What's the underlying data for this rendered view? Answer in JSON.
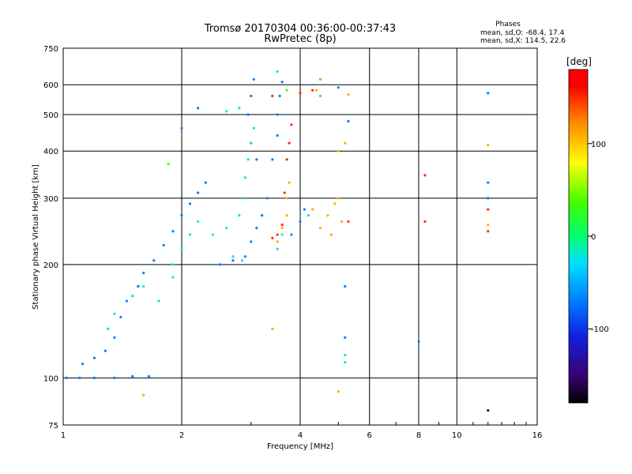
{
  "chart_data": {
    "type": "scatter",
    "title": "Tromsø 20170304 00:36:00-00:37:43",
    "subtitle": "RwPretec (8p)",
    "xlabel": "Frequency [MHz]",
    "ylabel": "Stationary phase Virtual Height [km]",
    "x_scale": "log",
    "y_scale": "log",
    "xlim": [
      1,
      16
    ],
    "ylim": [
      75,
      750
    ],
    "x_ticks": [
      1,
      2,
      4,
      6,
      8,
      10,
      16
    ],
    "y_ticks": [
      75,
      100,
      200,
      300,
      400,
      500,
      600,
      750
    ],
    "grid": true,
    "phase_stats": {
      "header": "Phases",
      "line_o": "mean, sd,O: -68.4, 17.4",
      "line_x": "mean, sd,X: 114.5, 22.6"
    },
    "colorbar": {
      "label": "[deg]",
      "range": [
        -180,
        180
      ],
      "ticks": [
        100,
        0,
        -100
      ]
    },
    "series": [
      {
        "color_phase": -70,
        "points": [
          [
            1.02,
            100
          ],
          [
            1.1,
            100
          ],
          [
            1.2,
            100
          ],
          [
            1.35,
            100
          ],
          [
            1.5,
            101
          ],
          [
            1.65,
            101
          ],
          [
            1.12,
            109
          ],
          [
            1.2,
            113
          ],
          [
            1.28,
            118
          ],
          [
            1.35,
            128
          ],
          [
            1.4,
            145
          ],
          [
            1.45,
            160
          ],
          [
            1.55,
            175
          ],
          [
            1.6,
            190
          ],
          [
            1.7,
            205
          ],
          [
            1.8,
            225
          ],
          [
            1.9,
            245
          ],
          [
            2.0,
            270
          ],
          [
            2.1,
            290
          ],
          [
            2.2,
            310
          ],
          [
            2.3,
            330
          ],
          [
            2.5,
            200
          ],
          [
            2.7,
            205
          ],
          [
            2.9,
            210
          ],
          [
            3.0,
            230
          ],
          [
            3.1,
            250
          ],
          [
            3.2,
            270
          ],
          [
            3.3,
            300
          ],
          [
            3.1,
            380
          ],
          [
            3.0,
            420
          ],
          [
            2.95,
            500
          ],
          [
            3.0,
            560
          ],
          [
            3.05,
            620
          ],
          [
            3.4,
            380
          ],
          [
            3.5,
            440
          ],
          [
            3.5,
            500
          ],
          [
            3.55,
            560
          ],
          [
            3.6,
            610
          ],
          [
            3.8,
            240
          ],
          [
            4.0,
            260
          ],
          [
            4.1,
            280
          ],
          [
            4.5,
            620
          ],
          [
            5.0,
            590
          ],
          [
            5.3,
            480
          ],
          [
            5.2,
            175
          ],
          [
            5.2,
            128
          ],
          [
            8.0,
            125
          ],
          [
            12.0,
            570
          ],
          [
            12.0,
            330
          ],
          [
            12.0,
            300
          ],
          [
            2.0,
            460
          ],
          [
            2.2,
            520
          ]
        ]
      },
      {
        "color_phase": -20,
        "points": [
          [
            1.3,
            135
          ],
          [
            1.35,
            148
          ],
          [
            1.5,
            165
          ],
          [
            1.6,
            175
          ],
          [
            1.75,
            160
          ],
          [
            1.9,
            185
          ],
          [
            2.0,
            220
          ],
          [
            2.1,
            240
          ],
          [
            2.2,
            260
          ],
          [
            2.4,
            240
          ],
          [
            2.6,
            250
          ],
          [
            2.8,
            270
          ],
          [
            2.9,
            300
          ],
          [
            2.9,
            340
          ],
          [
            2.95,
            380
          ],
          [
            3.0,
            420
          ],
          [
            3.05,
            460
          ],
          [
            2.7,
            210
          ],
          [
            2.85,
            205
          ],
          [
            3.5,
            220
          ],
          [
            3.6,
            240
          ],
          [
            4.2,
            270
          ],
          [
            2.6,
            510
          ],
          [
            2.8,
            520
          ],
          [
            3.5,
            650
          ],
          [
            4.5,
            560
          ],
          [
            5.2,
            115
          ],
          [
            5.2,
            110
          ],
          [
            1.9,
            200
          ]
        ]
      },
      {
        "color_phase": 110,
        "points": [
          [
            3.5,
            230
          ],
          [
            3.6,
            250
          ],
          [
            3.7,
            270
          ],
          [
            3.7,
            300
          ],
          [
            3.75,
            330
          ],
          [
            4.3,
            280
          ],
          [
            4.5,
            250
          ],
          [
            4.7,
            270
          ],
          [
            4.9,
            290
          ],
          [
            5.0,
            300
          ],
          [
            5.1,
            260
          ],
          [
            4.8,
            240
          ],
          [
            5.0,
            400
          ],
          [
            5.2,
            420
          ],
          [
            5.3,
            565
          ],
          [
            4.4,
            580
          ],
          [
            5.0,
            92
          ],
          [
            1.6,
            90
          ],
          [
            12.0,
            415
          ],
          [
            12.0,
            255
          ]
        ]
      },
      {
        "color_phase": 150,
        "points": [
          [
            3.4,
            235
          ],
          [
            3.5,
            240
          ],
          [
            3.6,
            255
          ],
          [
            3.65,
            310
          ],
          [
            3.7,
            380
          ],
          [
            3.75,
            420
          ],
          [
            3.8,
            470
          ],
          [
            3.4,
            560
          ],
          [
            4.0,
            570
          ],
          [
            4.3,
            580
          ],
          [
            8.3,
            345
          ],
          [
            8.3,
            260
          ],
          [
            12.0,
            280
          ],
          [
            12.0,
            245
          ],
          [
            5.3,
            260
          ]
        ]
      },
      {
        "color_phase": 40,
        "points": [
          [
            1.85,
            370
          ],
          [
            3.7,
            580
          ],
          [
            3.4,
            135
          ],
          [
            4.5,
            620
          ]
        ]
      },
      {
        "color_phase": -150,
        "points": [
          [
            12.0,
            82
          ]
        ]
      }
    ]
  }
}
